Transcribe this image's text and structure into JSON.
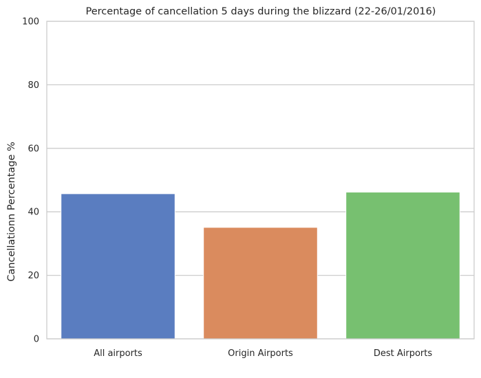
{
  "chart_data": {
    "type": "bar",
    "title": "Percentage of cancellation 5 days during the blizzard (22-26/01/2016)",
    "xlabel": "",
    "ylabel": "Cancellationn Percentage %",
    "categories": [
      "All airports",
      "Origin Airports",
      "Dest Airports"
    ],
    "values": [
      45.7,
      35.1,
      46.2
    ],
    "colors": [
      "#5a7dc0",
      "#da8b5e",
      "#77c070"
    ],
    "ylim": [
      0,
      100
    ],
    "yticks": [
      "0",
      "20",
      "40",
      "60",
      "80",
      "100"
    ],
    "grid": true,
    "gridColor": "#cccccc"
  }
}
